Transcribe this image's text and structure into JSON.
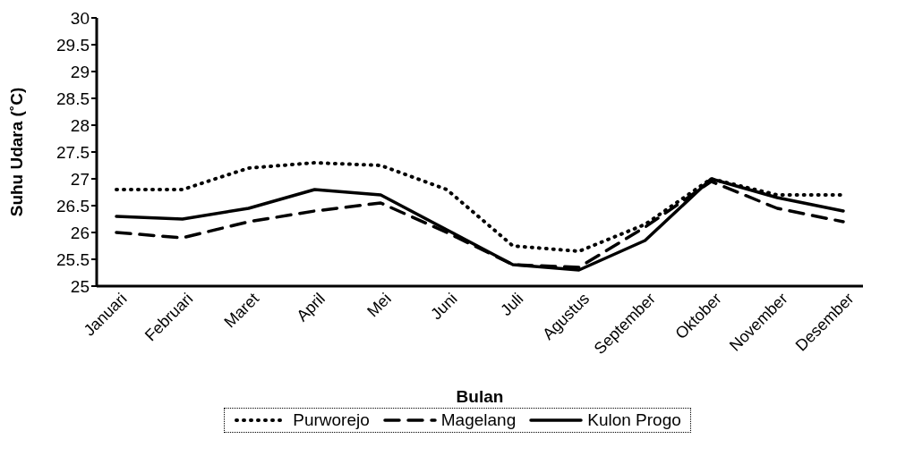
{
  "chart_data": {
    "type": "line",
    "xlabel": "Bulan",
    "ylabel": "Suhu Udara (˚C)",
    "categories": [
      "Januari",
      "Februari",
      "Maret",
      "April",
      "Mei",
      "Juni",
      "Juli",
      "Agustus",
      "September",
      "Oktober",
      "November",
      "Desember"
    ],
    "series": [
      {
        "name": "Purworejo",
        "color": "#000000",
        "line_style": "dotted",
        "values": [
          26.8,
          26.8,
          27.2,
          27.3,
          27.25,
          26.8,
          25.75,
          25.65,
          26.15,
          27.0,
          26.7,
          26.7
        ]
      },
      {
        "name": "Magelang",
        "color": "#000000",
        "line_style": "dashed",
        "values": [
          26.0,
          25.9,
          26.2,
          26.4,
          26.55,
          26.0,
          25.4,
          25.35,
          26.1,
          26.95,
          26.45,
          26.2
        ]
      },
      {
        "name": "Kulon Progo",
        "color": "#000000",
        "line_style": "solid",
        "values": [
          26.3,
          26.25,
          26.45,
          26.8,
          26.7,
          26.05,
          25.4,
          25.3,
          25.85,
          27.0,
          26.65,
          26.4
        ]
      }
    ],
    "ylim": [
      25,
      30
    ],
    "yticks": [
      25,
      25.5,
      26,
      26.5,
      27,
      27.5,
      28,
      28.5,
      29,
      29.5,
      30
    ],
    "grid": false,
    "legend": "bottom",
    "marker": "none"
  }
}
